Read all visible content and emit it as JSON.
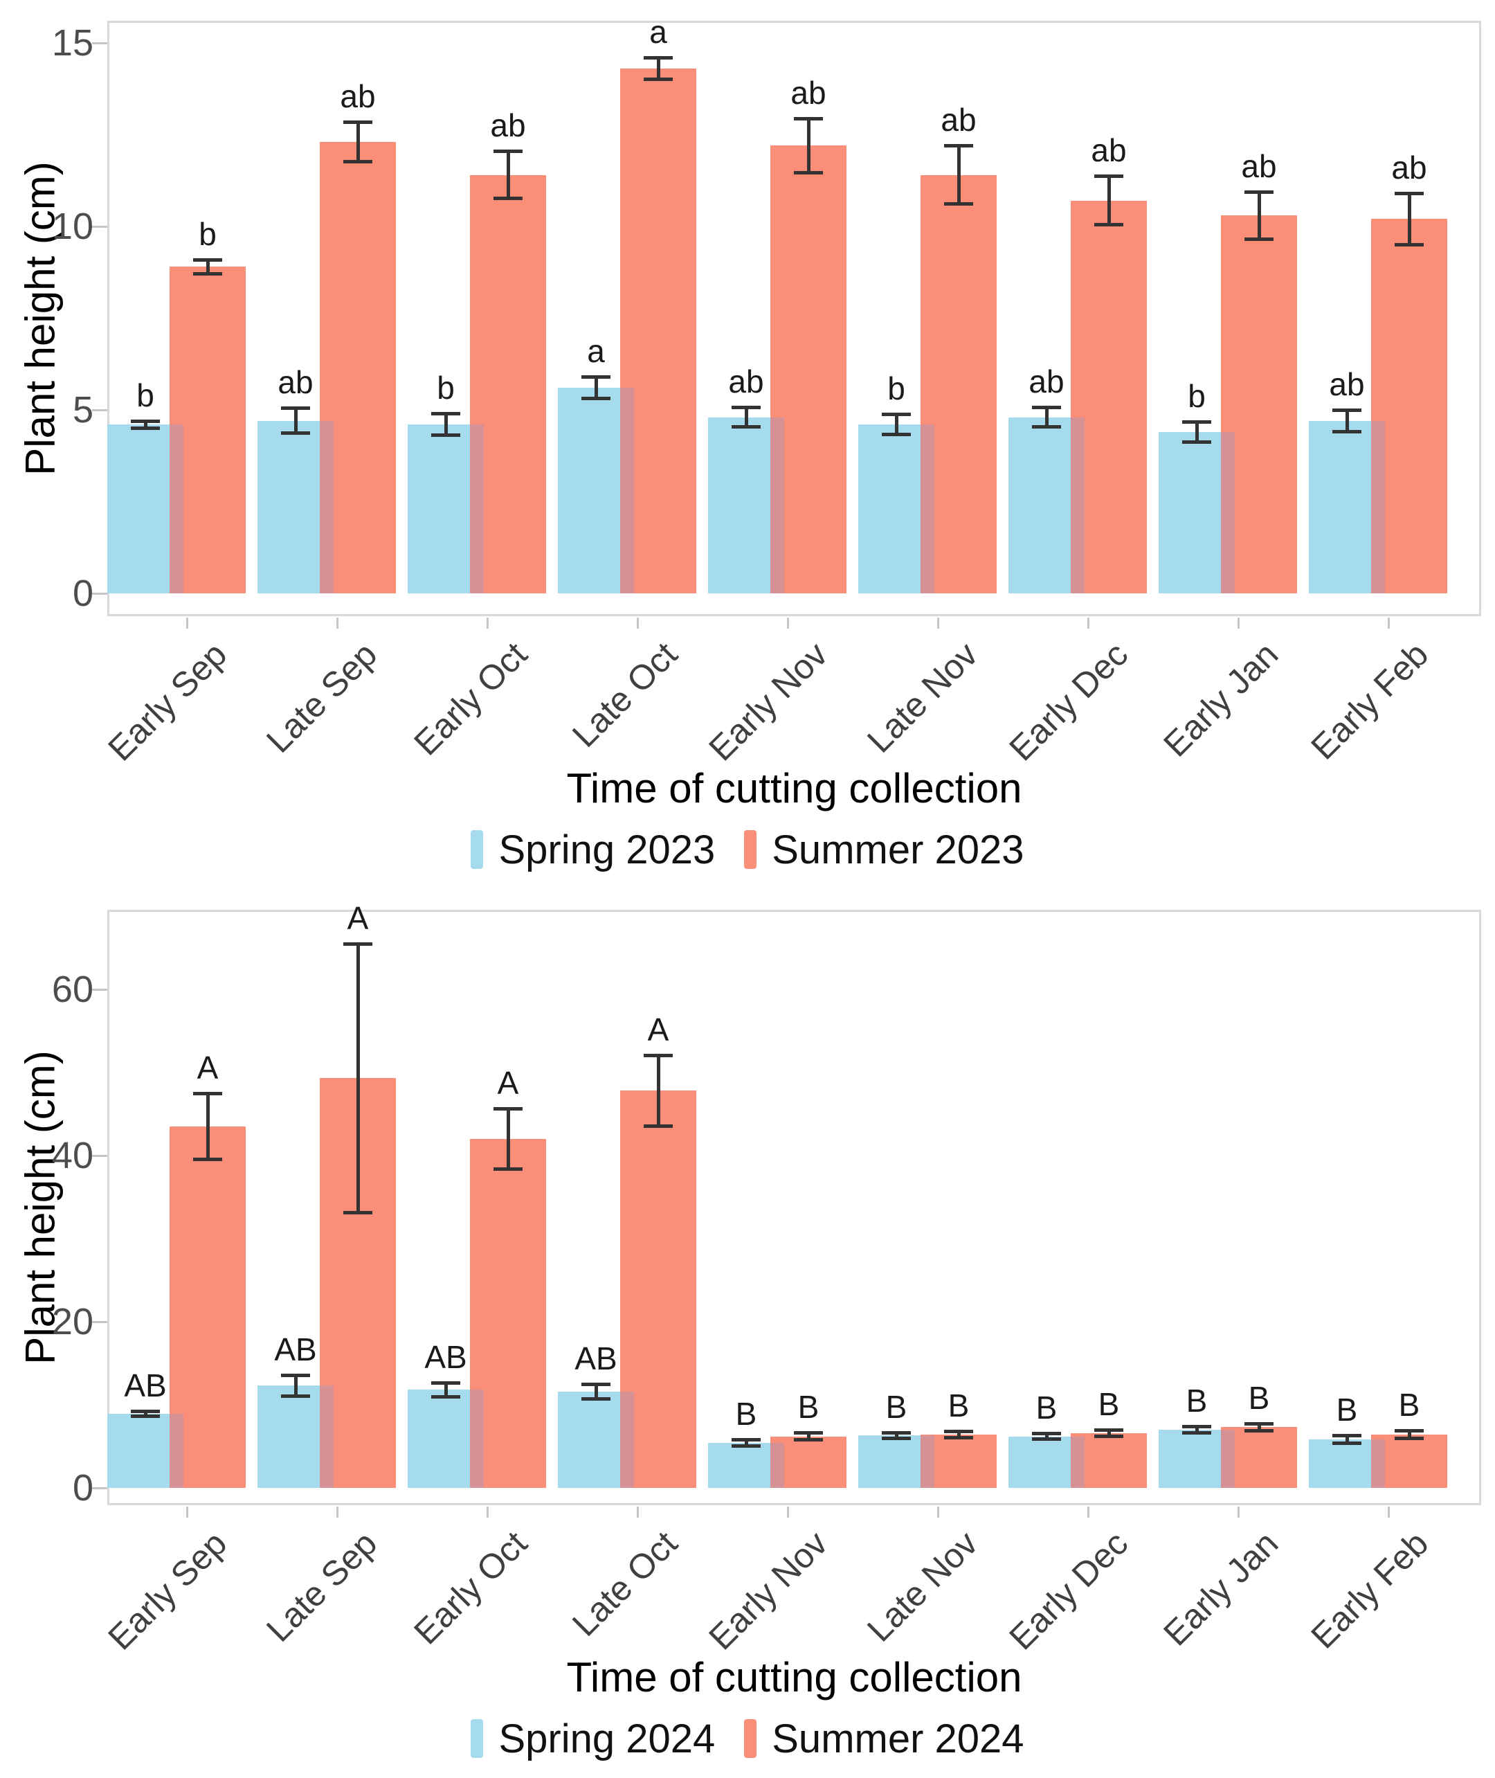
{
  "page": {
    "background": "#ffffff"
  },
  "colors": {
    "spring": "#A6DBEE",
    "summer": "#FA8E78",
    "overlap": "#D69195",
    "error_bar": "#333333",
    "tick_label": "#4D4D4D",
    "axis_text": "#000000",
    "panel_border": "#D8D8D8",
    "tick_mark": "#C6C6C6",
    "letter": "#1A1A1A"
  },
  "chart_data": [
    {
      "type": "bar",
      "title": "",
      "xlabel": "Time of cutting collection",
      "ylabel": "Plant height (cm)",
      "categories": [
        "Early Sep",
        "Late Sep",
        "Early Oct",
        "Late Oct",
        "Early Nov",
        "Late Nov",
        "Early Dec",
        "Early Jan",
        "Early Feb"
      ],
      "y_ticks": [
        0,
        5,
        10,
        15
      ],
      "ylim": [
        0,
        15.6
      ],
      "grid": false,
      "legend_position": "bottom",
      "error_bars": true,
      "series": [
        {
          "name": "Spring 2023",
          "color": "#A6DBEE",
          "values": [
            4.6,
            4.7,
            4.6,
            5.6,
            4.8,
            4.6,
            4.8,
            4.4,
            4.7
          ],
          "errors": [
            0.1,
            0.35,
            0.3,
            0.3,
            0.28,
            0.28,
            0.28,
            0.28,
            0.3
          ],
          "letters": [
            "b",
            "ab",
            "b",
            "a",
            "ab",
            "b",
            "ab",
            "b",
            "ab"
          ]
        },
        {
          "name": "Summer 2023",
          "color": "#FA8E78",
          "values": [
            8.9,
            12.3,
            11.4,
            14.3,
            12.2,
            11.4,
            10.7,
            10.3,
            10.2
          ],
          "errors": [
            0.2,
            0.55,
            0.65,
            0.3,
            0.75,
            0.8,
            0.67,
            0.65,
            0.7
          ],
          "letters": [
            "b",
            "ab",
            "ab",
            "a",
            "ab",
            "ab",
            "ab",
            "ab",
            "ab"
          ]
        }
      ]
    },
    {
      "type": "bar",
      "title": "",
      "xlabel": "Time of cutting collection",
      "ylabel": "Plant height (cm)",
      "categories": [
        "Early Sep",
        "Late Sep",
        "Early Oct",
        "Late Oct",
        "Early Nov",
        "Late Nov",
        "Early Dec",
        "Early Jan",
        "Early Feb"
      ],
      "y_ticks": [
        0,
        20,
        40,
        60
      ],
      "ylim": [
        0,
        71
      ],
      "grid": false,
      "legend_position": "bottom",
      "error_bars": true,
      "series": [
        {
          "name": "Spring 2024",
          "color": "#A6DBEE",
          "values": [
            8.9,
            12.3,
            11.8,
            11.6,
            5.4,
            6.3,
            6.2,
            7.0,
            5.8
          ],
          "errors": [
            0.35,
            1.3,
            0.9,
            0.9,
            0.4,
            0.4,
            0.4,
            0.4,
            0.5
          ],
          "letters": [
            "AB",
            "AB",
            "AB",
            "AB",
            "B",
            "B",
            "B",
            "B",
            "B"
          ]
        },
        {
          "name": "Summer 2024",
          "color": "#FA8E78",
          "values": [
            43.5,
            49.3,
            42.0,
            47.8,
            6.2,
            6.4,
            6.6,
            7.3,
            6.4
          ],
          "errors": [
            4.0,
            16.2,
            3.7,
            4.3,
            0.45,
            0.4,
            0.4,
            0.45,
            0.5
          ],
          "letters": [
            "A",
            "A",
            "A",
            "A",
            "B",
            "B",
            "B",
            "B",
            "B"
          ]
        }
      ]
    }
  ]
}
